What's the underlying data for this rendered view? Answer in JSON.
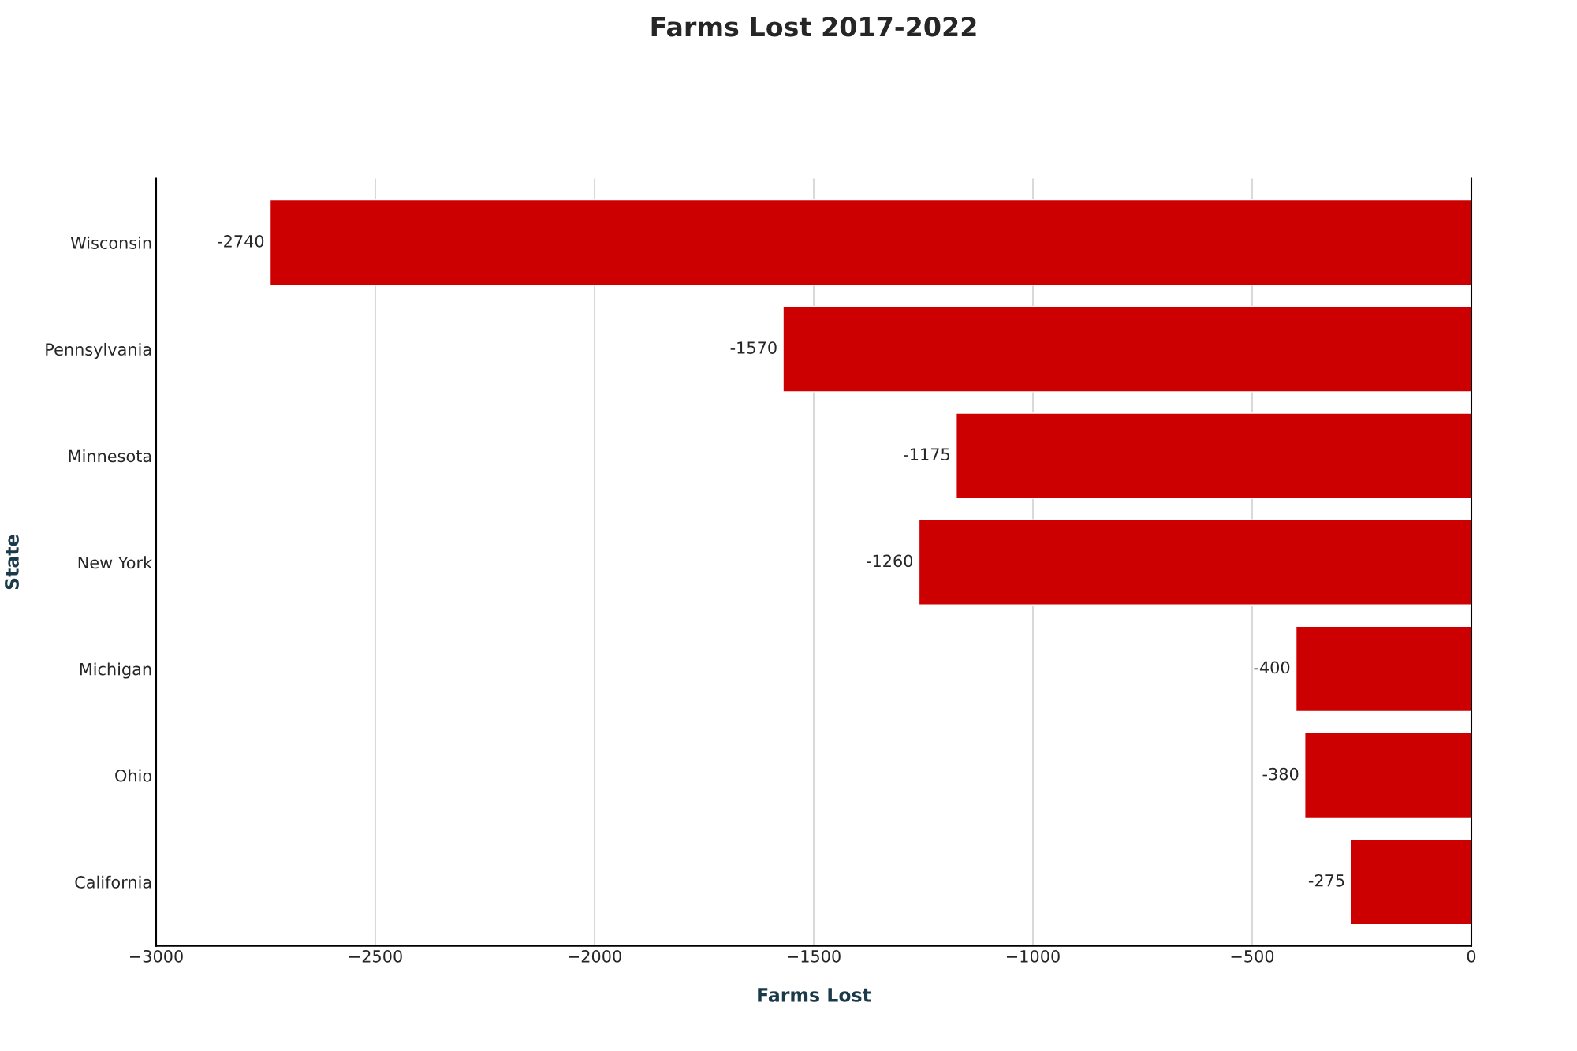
{
  "chart_data": {
    "type": "bar",
    "orientation": "horizontal",
    "title": "Farms Lost 2017-2022",
    "xlabel": "Farms Lost",
    "ylabel": "State",
    "categories": [
      "Wisconsin",
      "Pennsylvania",
      "Minnesota",
      "New York",
      "Michigan",
      "Ohio",
      "California"
    ],
    "values": [
      -2740,
      -1570,
      -1175,
      -1260,
      -400,
      -380,
      -275
    ],
    "color": "#cc0000",
    "xlim": [
      -3000,
      0
    ],
    "xticks": [
      {
        "value": -3000,
        "label": "−3000"
      },
      {
        "value": -2500,
        "label": "−2500"
      },
      {
        "value": -2000,
        "label": "−2000"
      },
      {
        "value": -1500,
        "label": "−1500"
      },
      {
        "value": -1000,
        "label": "−1000"
      },
      {
        "value": -500,
        "label": "−500"
      },
      0
    ],
    "grid": "x",
    "data_labels": true
  }
}
